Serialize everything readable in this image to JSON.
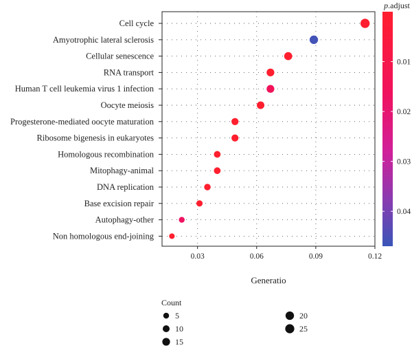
{
  "chart_data": {
    "type": "scatter",
    "categories": [
      "Cell cycle",
      "Amyotrophic lateral sclerosis",
      "Cellular senescence",
      "RNA transport",
      "Human T cell leukemia virus 1 infection",
      "Oocyte meiosis",
      "Progesterone-mediated oocyte maturation",
      "Ribosome bigenesis in eukaryotes",
      "Homologous recombination",
      "Mitophagy-animal",
      "DNA replication",
      "Base excision repair",
      "Autophagy-other",
      "Non homologous end-joining"
    ],
    "gene_ratio": [
      0.115,
      0.089,
      0.076,
      0.067,
      0.067,
      0.062,
      0.049,
      0.049,
      0.04,
      0.04,
      0.035,
      0.031,
      0.022,
      0.017
    ],
    "count": [
      26,
      20,
      17,
      15,
      15,
      14,
      11,
      11,
      9,
      9,
      8,
      7,
      5,
      4
    ],
    "p_adjust": [
      0.0001,
      0.046,
      0.0002,
      0.0002,
      0.015,
      0.0005,
      0.0001,
      0.0001,
      0.0001,
      0.0002,
      0.0002,
      0.0001,
      0.017,
      0.0001
    ],
    "xlabel": "Generatio",
    "x_ticks": [
      0.03,
      0.06,
      0.09,
      0.12
    ],
    "x_tick_labels": [
      "0.03",
      "0.06",
      "0.09",
      "0.12"
    ],
    "xlim": [
      0.012,
      0.12
    ],
    "grid": "dotted",
    "color_legend": {
      "title_italic": "p",
      "title_rest": ".adjust",
      "ticks": [
        0.01,
        0.02,
        0.03,
        0.04
      ],
      "tick_labels": [
        "0.01",
        "0.02",
        "0.03",
        "0.04"
      ],
      "range": [
        0.0,
        0.047
      ],
      "low_color": "#ff1f2e",
      "mid_color": "#e8107a",
      "high_color": "#3a56b8"
    },
    "size_legend": {
      "title": "Count",
      "values": [
        5,
        10,
        15,
        20,
        25
      ],
      "labels": [
        "5",
        "10",
        "15",
        "20",
        "25"
      ]
    }
  }
}
